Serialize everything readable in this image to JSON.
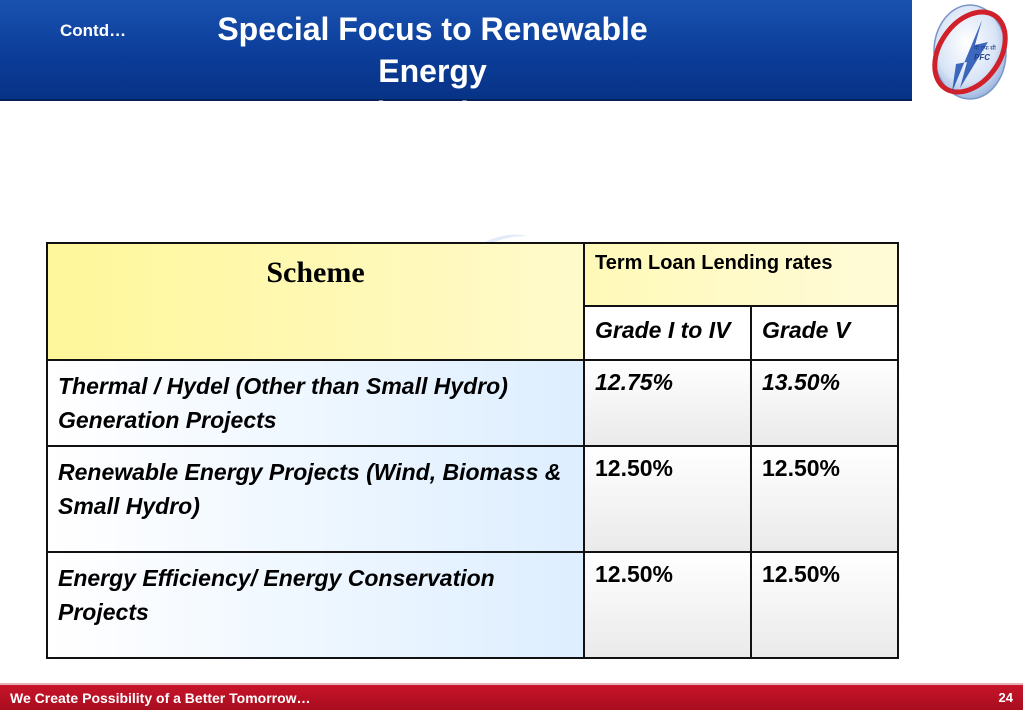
{
  "header": {
    "contd": "Contd…",
    "title_line1": "Special Focus to Renewable Energy",
    "title_line2": "Financing"
  },
  "logo": {
    "icon": "pfc-logo-icon",
    "text": "PFC"
  },
  "table": {
    "scheme_header": "Scheme",
    "rates_header": "Term Loan Lending rates",
    "grade_cols": [
      "Grade I to IV",
      "Grade V"
    ],
    "rows": [
      {
        "scheme": "Thermal / Hydel (Other than Small Hydro) Generation Projects",
        "grade_1_4": "12.75%",
        "grade_5": "13.50%"
      },
      {
        "scheme": "Renewable Energy Projects (Wind, Biomass & Small Hydro)",
        "grade_1_4": "12.50%",
        "grade_5": "12.50%"
      },
      {
        "scheme": "Energy Efficiency/ Energy Conservation Projects",
        "grade_1_4": "12.50%",
        "grade_5": "12.50%"
      }
    ]
  },
  "footer": {
    "tagline": "We Create Possibility of a Better Tomorrow…",
    "page_number": "24"
  },
  "colors": {
    "header_blue": "#0b3d99",
    "footer_red": "#b8101f",
    "scheme_yellow": "#fff79a",
    "row_blue": "#ddeeff"
  }
}
